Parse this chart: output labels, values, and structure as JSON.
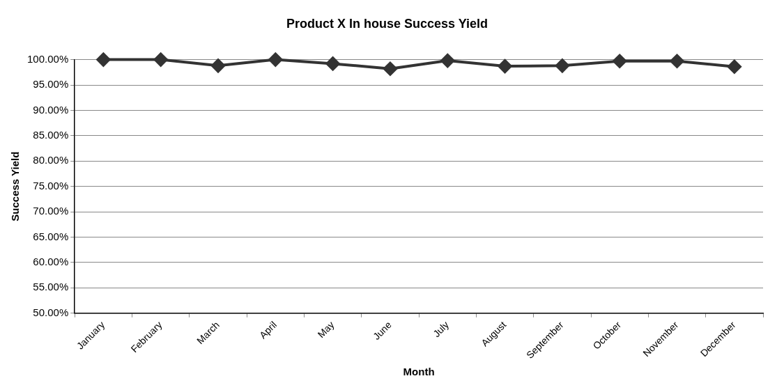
{
  "chart_data": {
    "type": "line",
    "title": "Product X In house Success Yield",
    "xlabel": "Month",
    "ylabel": "Success Yield",
    "categories": [
      "January",
      "February",
      "March",
      "April",
      "May",
      "June",
      "July",
      "August",
      "September",
      "October",
      "November",
      "December"
    ],
    "series": [
      {
        "color": "#333333",
        "values": [
          100,
          100,
          98.8,
          100,
          99.2,
          98.2,
          99.8,
          98.7,
          98.8,
          99.7,
          99.7,
          98.6
        ]
      }
    ],
    "ylim": [
      50,
      100
    ],
    "yticks": [
      {
        "value": 50,
        "label": "50.00%"
      },
      {
        "value": 55,
        "label": "55.00%"
      },
      {
        "value": 60,
        "label": "60.00%"
      },
      {
        "value": 65,
        "label": "65.00%"
      },
      {
        "value": 70,
        "label": "70.00%"
      },
      {
        "value": 75,
        "label": "75.00%"
      },
      {
        "value": 80,
        "label": "80.00%"
      },
      {
        "value": 85,
        "label": "85.00%"
      },
      {
        "value": 90,
        "label": "90.00%"
      },
      {
        "value": 95,
        "label": "95.00%"
      },
      {
        "value": 100,
        "label": "100.00%"
      }
    ],
    "grid": "y",
    "legend": false,
    "marker": "diamond",
    "line_style": "solid"
  }
}
